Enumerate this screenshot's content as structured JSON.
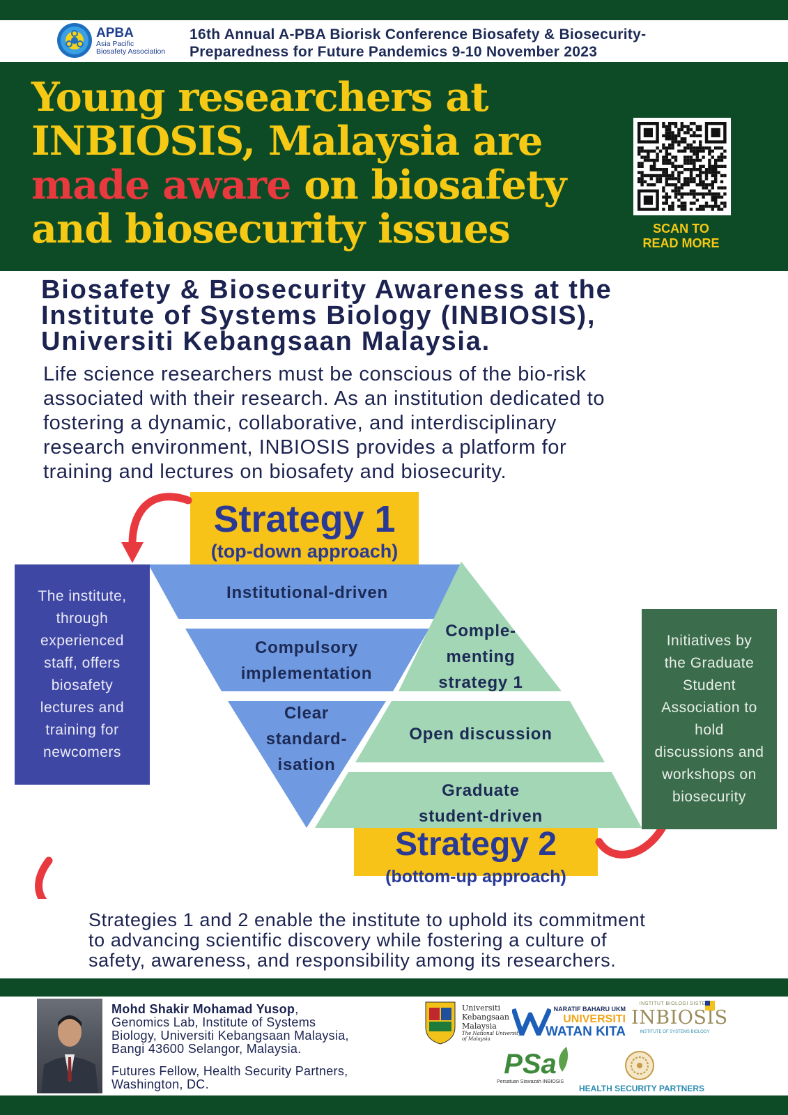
{
  "header": {
    "logo": {
      "short": "APBA",
      "line1": "Asia Pacific",
      "line2": "Biosafety Association"
    },
    "conference_line1": "16th Annual A-PBA Biorisk Conference Biosafety & Biosecurity-",
    "conference_line2": "Preparedness for Future Pandemics 9-10 November 2023"
  },
  "banner": {
    "headline_line1": "Young researchers at",
    "headline_line2": "INBIOSIS, Malaysia are",
    "headline_line3_red": "made aware",
    "headline_line3_rest": " on biosafety",
    "headline_line4": "and biosecurity issues",
    "qr_caption_line1": "SCAN TO",
    "qr_caption_line2": "READ MORE"
  },
  "article": {
    "title_line1": "Biosafety & Biosecurity Awareness at the",
    "title_line2": "Institute of Systems Biology (INBIOSIS),",
    "title_line3": "Universiti Kebangsaan Malaysia.",
    "intro_line1": "Life science researchers must be conscious of the bio-risk",
    "intro_line2": "associated with their research. As an institution dedicated to",
    "intro_line3": "fostering a dynamic, collaborative, and interdisciplinary",
    "intro_line4": "research environment, INBIOSIS provides a platform for",
    "intro_line5": "training and lectures on biosafety and biosecurity."
  },
  "diagram": {
    "strategy1": {
      "title": "Strategy 1",
      "subtitle": "(top-down approach)"
    },
    "strategy2": {
      "title": "Strategy 2",
      "subtitle": "(bottom-up approach)"
    },
    "left_box": [
      "The institute,",
      "through",
      "experienced",
      "staff, offers",
      "biosafety",
      "lectures and",
      "training for",
      "newcomers"
    ],
    "right_box": [
      "Initiatives by",
      "the Graduate",
      "Student",
      "Association to",
      "hold",
      "discussions and",
      "workshops on",
      "biosecurity"
    ],
    "inverted_layers": {
      "l1": "Institutional-driven",
      "l2a": "Compulsory",
      "l2b": "implementation",
      "l3a": "Clear",
      "l3b": "standard-",
      "l3c": "isation"
    },
    "upright_layers": {
      "l1a": "Comple-",
      "l1b": "menting",
      "l1c": "strategy 1",
      "l2": "Open discussion",
      "l3a": "Graduate",
      "l3b": "student-driven"
    },
    "colors": {
      "blue_layer": "#6f99e0",
      "green_layer": "#a2d6b5",
      "yellow": "#f8c319",
      "arrow_red": "#e8393e"
    }
  },
  "summary": {
    "line1": "Strategies 1 and 2 enable the institute to uphold its commitment",
    "line2": "to advancing scientific discovery while fostering a culture of",
    "line3": "safety, awareness, and responsibility among its researchers."
  },
  "footer": {
    "author_name": "Mohd Shakir Mohamad Yusop",
    "author_aff_line1": "Genomics Lab, Institute of Systems",
    "author_aff_line2": "Biology, Universiti Kebangsaan Malaysia,",
    "author_aff_line3": "Bangi 43600 Selangor, Malaysia.",
    "fellow_line1": "Futures Fellow, Health Security Partners,",
    "fellow_line2": "Washington, DC.",
    "logos": {
      "ukm_line1": "Universiti",
      "ukm_line2": "Kebangsaan",
      "ukm_line3": "Malaysia",
      "ukm_line4": "The National University",
      "ukm_line5": "of Malaysia",
      "uwk_small": "NARATIF BAHARU UKM",
      "uwk_line1": "UNIVERSITI",
      "uwk_line2": "WATAN KITA",
      "inbiosis_small": "INSTITUT BIOLOGI SISTEM",
      "inbiosis_big": "INBIOSIS",
      "inbiosis_caption": "INSTITUTE OF SYSTEMS BIOLOGY",
      "psa_big": "PSa",
      "psa_caption": "Persatuan Siswazah INBIOSIS",
      "hsp": "HEALTH SECURITY PARTNERS"
    }
  }
}
